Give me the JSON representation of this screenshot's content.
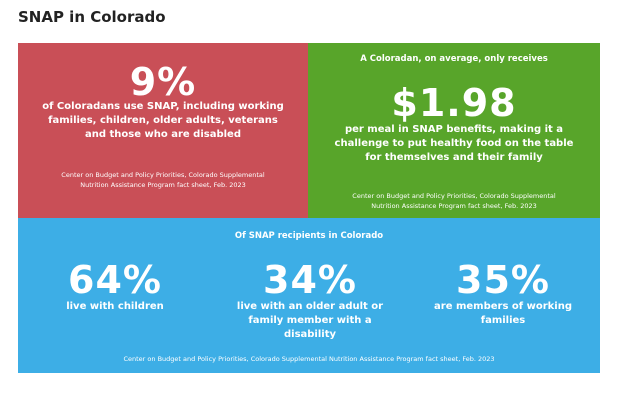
{
  "header": {
    "title": "SNAP in Colorado"
  },
  "panels": [
    {
      "stat": "9%",
      "text": "of Coloradans use SNAP, including working families, children, older adults, veterans and those who are disabled",
      "source": "Center on Budget and Policy Priorities, Colorado Supplemental Nutrition Assistance Program fact sheet, Feb. 2023"
    },
    {
      "heading": "A Coloradan, on average, only receives",
      "stat": "$1.98",
      "text": "per meal in SNAP benefits, making it a challenge to put healthy food on the table for themselves and their family",
      "source": "Center on Budget and Policy Priorities, Colorado Supplemental Nutrition Assistance Program fact sheet, Feb. 2023"
    },
    {
      "heading": "Of SNAP recipients in Colorado",
      "stats": [
        {
          "stat": "64%",
          "text": "live with children"
        },
        {
          "stat": "34%",
          "text": "live with an older adult or family member with a disability"
        },
        {
          "stat": "35%",
          "text": "are members of working families"
        }
      ],
      "source": "Center on Budget and Policy Priorities, Colorado Supplemental Nutrition Assistance Program fact sheet, Feb. 2023"
    }
  ]
}
